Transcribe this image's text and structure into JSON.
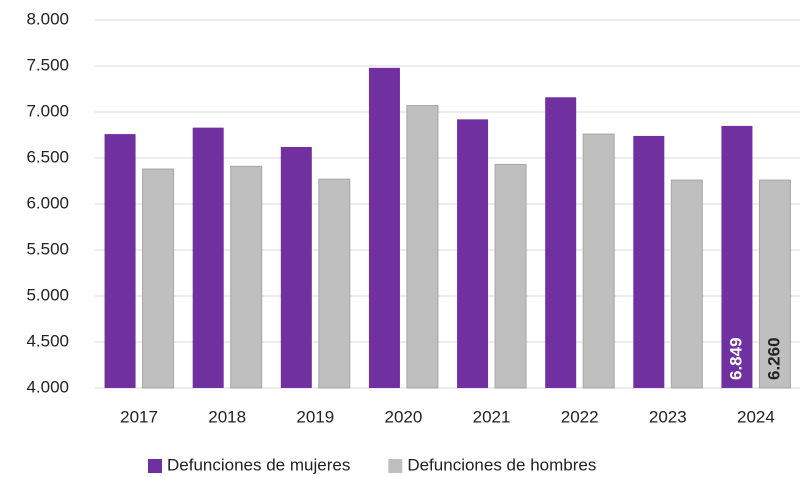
{
  "chart_data": {
    "type": "bar",
    "categories": [
      "2017",
      "2018",
      "2019",
      "2020",
      "2021",
      "2022",
      "2023",
      "2024"
    ],
    "series": [
      {
        "name": "Defunciones de mujeres",
        "color": "#7030a0",
        "values": [
          6760,
          6830,
          6620,
          7480,
          6920,
          7160,
          6740,
          6849
        ],
        "value_labels": [
          null,
          null,
          null,
          null,
          null,
          null,
          null,
          "6.849"
        ]
      },
      {
        "name": "Defunciones de hombres",
        "color": "#bfbfbf",
        "values": [
          6380,
          6410,
          6270,
          7070,
          6430,
          6760,
          6260,
          6260
        ],
        "value_labels": [
          null,
          null,
          null,
          null,
          null,
          null,
          null,
          "6.260"
        ]
      }
    ],
    "ylim": [
      4000,
      8000
    ],
    "yticks": [
      {
        "value": 4000,
        "label": "4.000"
      },
      {
        "value": 4500,
        "label": "4.500"
      },
      {
        "value": 5000,
        "label": "5.000"
      },
      {
        "value": 5500,
        "label": "5.500"
      },
      {
        "value": 6000,
        "label": "6.000"
      },
      {
        "value": 6500,
        "label": "6.500"
      },
      {
        "value": 7000,
        "label": "7.000"
      },
      {
        "value": 7500,
        "label": "7.500"
      },
      {
        "value": 8000,
        "label": "8.000"
      }
    ],
    "grid": true,
    "legend": "bottom"
  }
}
